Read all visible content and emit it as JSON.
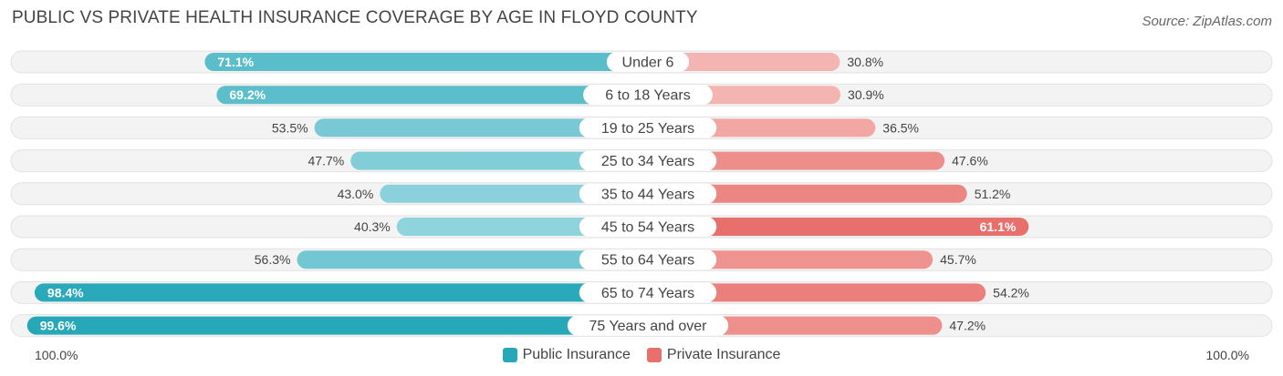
{
  "chart_data": {
    "type": "bar",
    "orientation": "horizontal-diverging",
    "title": "PUBLIC VS PRIVATE HEALTH INSURANCE COVERAGE BY AGE IN FLOYD COUNTY",
    "source": "Source: ZipAtlas.com",
    "categories": [
      "Under 6",
      "6 to 18 Years",
      "19 to 25 Years",
      "25 to 34 Years",
      "35 to 44 Years",
      "45 to 54 Years",
      "55 to 64 Years",
      "65 to 74 Years",
      "75 Years and over"
    ],
    "series": [
      {
        "name": "Public Insurance",
        "values": [
          71.1,
          69.2,
          53.5,
          47.7,
          43.0,
          40.3,
          56.3,
          98.4,
          99.6
        ],
        "labels": [
          "71.1%",
          "69.2%",
          "53.5%",
          "47.7%",
          "43.0%",
          "40.3%",
          "56.3%",
          "98.4%",
          "99.6%"
        ]
      },
      {
        "name": "Private Insurance",
        "values": [
          30.8,
          30.9,
          36.5,
          47.6,
          51.2,
          61.1,
          45.7,
          54.2,
          47.2
        ],
        "labels": [
          "30.8%",
          "30.9%",
          "36.5%",
          "47.6%",
          "51.2%",
          "61.1%",
          "45.7%",
          "54.2%",
          "47.2%"
        ]
      }
    ],
    "xlim": [
      0,
      100
    ],
    "axis_left_label": "100.0%",
    "axis_right_label": "100.0%",
    "legend": [
      "Public Insurance",
      "Private Insurance"
    ],
    "legend_position": "bottom-center",
    "colors": {
      "public_dark": "#27a8b8",
      "public_light": "#8fd3dd",
      "private_dark": "#e8706c",
      "private_light": "#f4b4b1",
      "track": "#efefef"
    }
  }
}
